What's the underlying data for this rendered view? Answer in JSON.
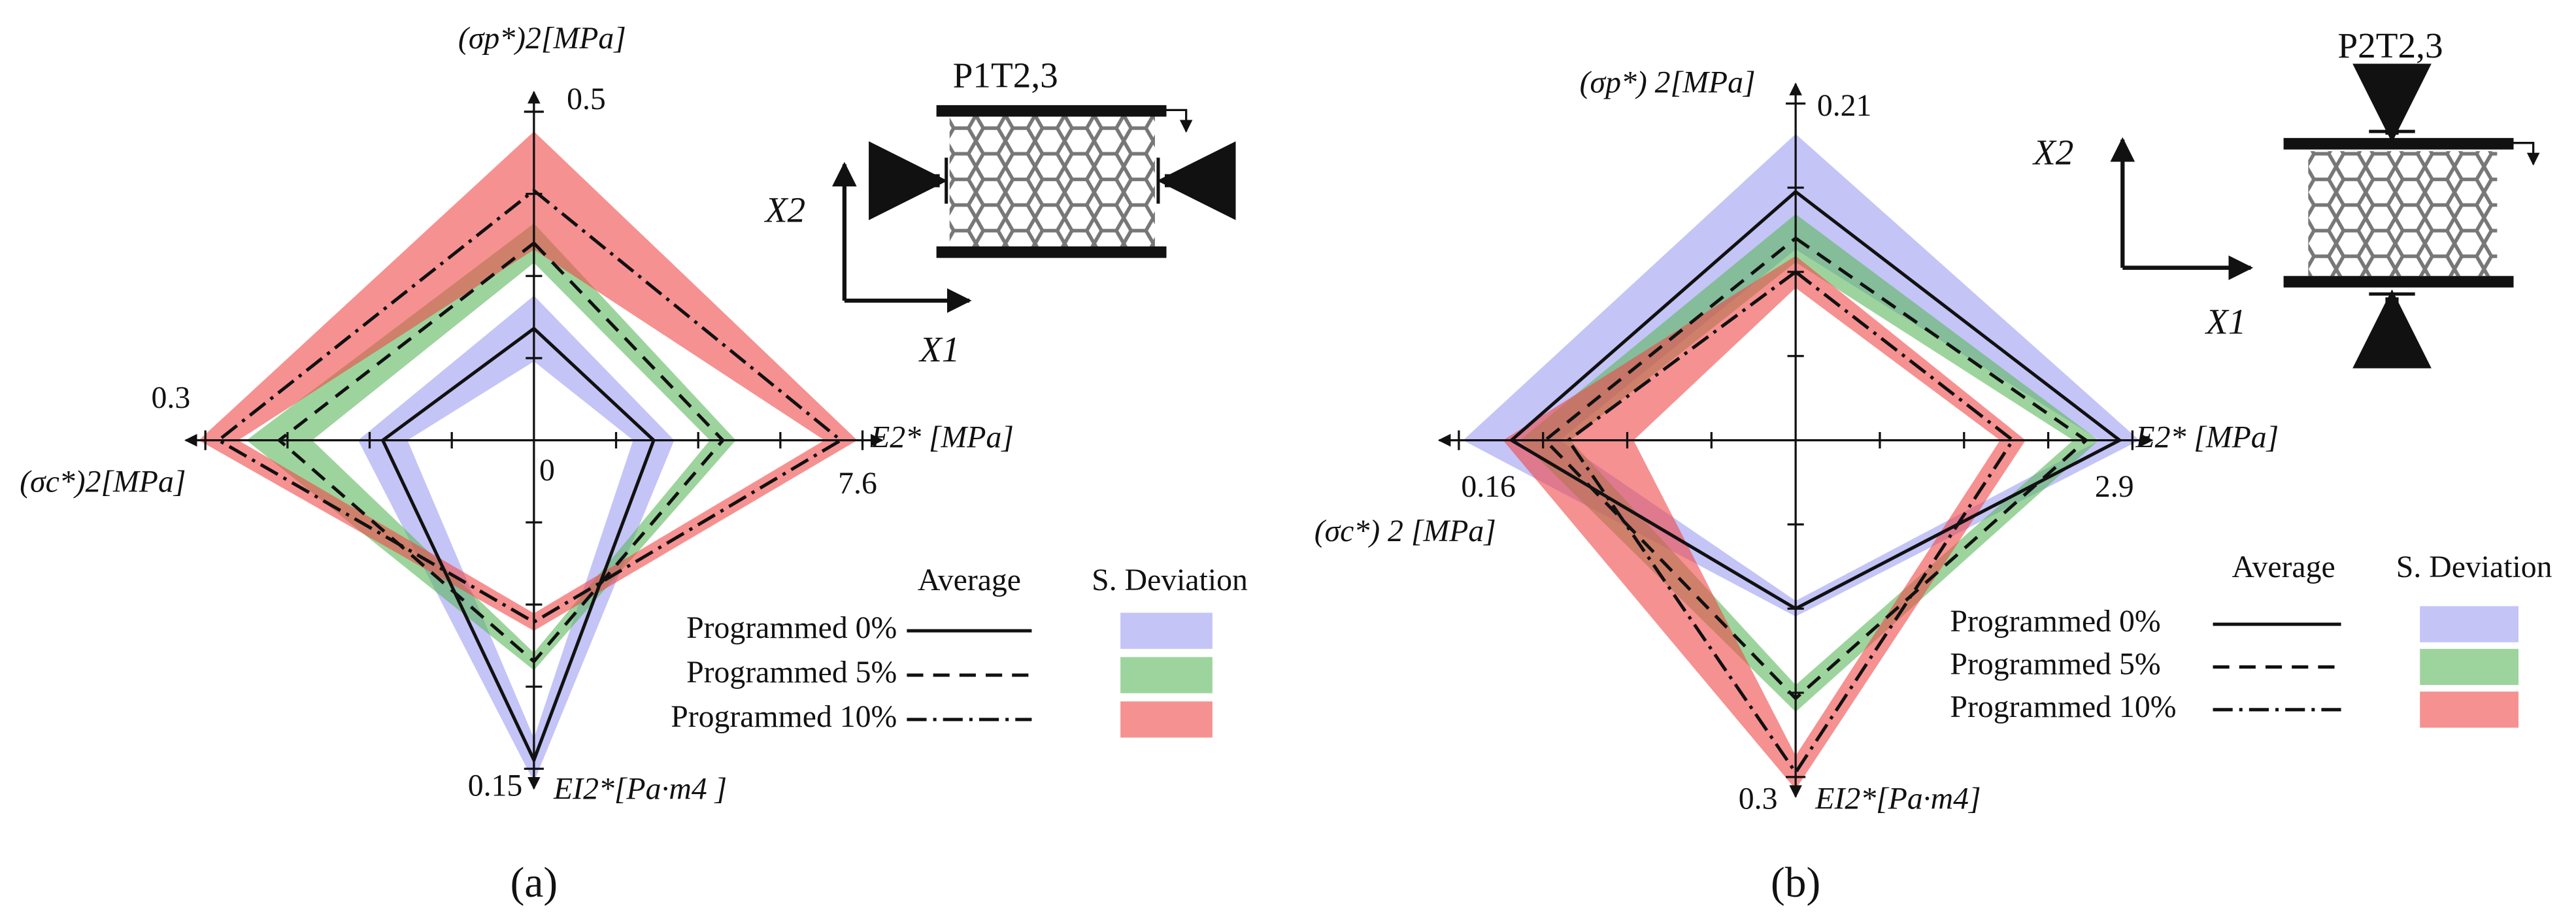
{
  "chart_data": [
    {
      "type": "radar",
      "panel_label": "(a)",
      "origin": 0,
      "show_origin": true,
      "tick_divisions": 4,
      "axes": [
        {
          "label": "(σp*)2[MPa]",
          "max": 0.5
        },
        {
          "label": "E2* [MPa]",
          "max": 7.6
        },
        {
          "label": "EI2*[Pa·m4 ]",
          "max": 0.15
        },
        {
          "label": "(σc*)2[MPa]",
          "max": 0.3
        }
      ],
      "legend_headers": [
        "Average",
        "S. Deviation"
      ],
      "series": [
        {
          "name": "Programmed 0%",
          "color": "#9c9cf2",
          "dash": "solid",
          "values": [
            0.17,
            2.77,
            0.146,
            0.138
          ],
          "std": [
            0.05,
            0.475,
            0.01,
            0.0225
          ]
        },
        {
          "name": "Programmed 5%",
          "color": "#5cb85c",
          "dash": "dashed",
          "values": [
            0.3,
            4.37,
            0.101,
            0.2325
          ],
          "std": [
            0.03,
            0.3,
            0.004,
            0.03
          ]
        },
        {
          "name": "Programmed 10%",
          "color": "#f04848",
          "dash": "dashdot",
          "values": [
            0.38,
            7.1,
            0.083,
            0.288
          ],
          "std": [
            0.09,
            0.38,
            0.004,
            0.018
          ]
        }
      ],
      "inset": {
        "title": "P1T2,3",
        "x1": "X1",
        "x2": "X2"
      }
    },
    {
      "type": "radar",
      "panel_label": "(b)",
      "origin": 0,
      "show_origin": false,
      "tick_divisions": 4,
      "axes": [
        {
          "label": "(σp*) 2[MPa]",
          "max": 0.21
        },
        {
          "label": "E2* [MPa]",
          "max": 2.9
        },
        {
          "label": "EI2*[Pa·m4]",
          "max": 0.3
        },
        {
          "label": "(σc*) 2 [MPa]",
          "max": 0.16
        }
      ],
      "legend_headers": [
        "Average",
        "S. Deviation"
      ],
      "series": [
        {
          "name": "Programmed 0%",
          "color": "#9c9cf2",
          "dash": "solid",
          "values": [
            0.155,
            2.79,
            0.15,
            0.135
          ],
          "std": [
            0.036,
            0.17,
            0.007,
            0.023
          ]
        },
        {
          "name": "Programmed 5%",
          "color": "#5cb85c",
          "dash": "dashed",
          "values": [
            0.126,
            2.5,
            0.23,
            0.119
          ],
          "std": [
            0.015,
            0.11,
            0.012,
            0.012
          ]
        },
        {
          "name": "Programmed 10%",
          "color": "#f04848",
          "dash": "dashdot",
          "values": [
            0.105,
            1.87,
            0.296,
            0.108
          ],
          "std": [
            0.01,
            0.11,
            0.015,
            0.031
          ]
        }
      ],
      "inset": {
        "title": "P2T2,3",
        "x1": "X1",
        "x2": "X2"
      }
    }
  ]
}
